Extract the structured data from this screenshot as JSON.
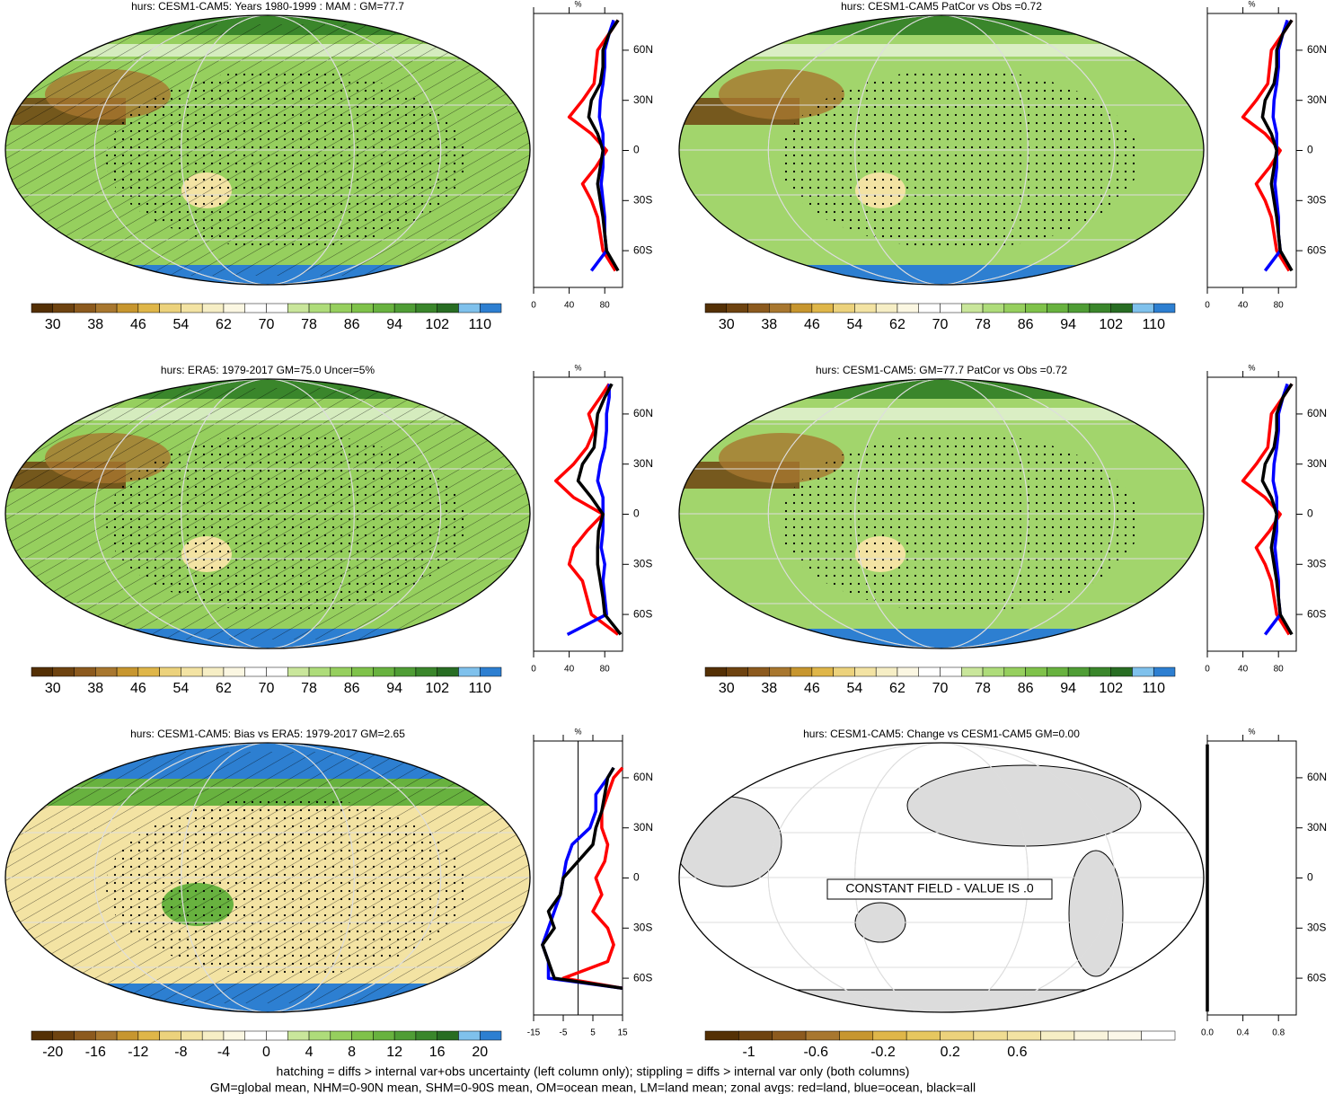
{
  "chart_data": [
    {
      "type": "zonal",
      "title": "hurs: CESM1-CAM5: Years 1980-1999 : MAM : GM=77.7",
      "map_color": "#96cf5e",
      "colorbar": {
        "colors": [
          "#543005",
          "#6e4310",
          "#8c5a1e",
          "#a8772f",
          "#c7962f",
          "#dfb649",
          "#ecd27c",
          "#f3e3a3",
          "#f6eec5",
          "#fbf7e2",
          "#ffffff",
          "#ffffff",
          "#c9e69b",
          "#aedc7a",
          "#96cf5e",
          "#7fc24a",
          "#68b23f",
          "#4f9d35",
          "#3a862b",
          "#286d23",
          "#7fc1ec",
          "#2d7fd1"
        ],
        "ticks": [
          30,
          38,
          46,
          54,
          62,
          70,
          78,
          86,
          94,
          102,
          110
        ]
      },
      "xlabel": "%",
      "xlim": [
        0,
        100
      ],
      "xticks": [
        0,
        40,
        80
      ],
      "ylim": [
        -82,
        82
      ],
      "yticks": [
        {
          "value": -60,
          "label": "60S"
        },
        {
          "value": -30,
          "label": "30S"
        },
        0,
        {
          "value": 30,
          "label": "30N"
        },
        {
          "value": 60,
          "label": "60N"
        }
      ],
      "lat": [
        -72,
        -60,
        -50,
        -40,
        -30,
        -20,
        -10,
        0,
        10,
        20,
        30,
        40,
        50,
        60,
        70,
        78
      ],
      "series": [
        {
          "color": "#ff0000",
          "values": [
            92,
            78,
            75,
            72,
            65,
            55,
            70,
            82,
            65,
            40,
            55,
            68,
            70,
            72,
            85,
            95
          ]
        },
        {
          "color": "#0000ff",
          "values": [
            65,
            82,
            80,
            80,
            78,
            76,
            78,
            78,
            78,
            74,
            75,
            78,
            80,
            80,
            85,
            90
          ]
        },
        {
          "color": "#000000",
          "values": [
            95,
            82,
            80,
            78,
            75,
            72,
            75,
            78,
            72,
            62,
            65,
            75,
            78,
            78,
            85,
            95
          ]
        }
      ]
    },
    {
      "type": "zonal",
      "title": "hurs: CESM1-CAM5 PatCor vs Obs =0.72",
      "map_color": "#a2d56c",
      "colorbar": {
        "colors": [
          "#543005",
          "#6e4310",
          "#8c5a1e",
          "#a8772f",
          "#c7962f",
          "#dfb649",
          "#ecd27c",
          "#f3e3a3",
          "#f6eec5",
          "#fbf7e2",
          "#ffffff",
          "#ffffff",
          "#c9e69b",
          "#aedc7a",
          "#96cf5e",
          "#7fc24a",
          "#68b23f",
          "#4f9d35",
          "#3a862b",
          "#286d23",
          "#7fc1ec",
          "#2d7fd1"
        ],
        "ticks": [
          30,
          38,
          46,
          54,
          62,
          70,
          78,
          86,
          94,
          102,
          110
        ]
      },
      "xlabel": "%",
      "xlim": [
        0,
        100
      ],
      "xticks": [
        0,
        40,
        80
      ],
      "ylim": [
        -82,
        82
      ],
      "yticks": [
        {
          "value": -60,
          "label": "60S"
        },
        {
          "value": -30,
          "label": "30S"
        },
        0,
        {
          "value": 30,
          "label": "30N"
        },
        {
          "value": 60,
          "label": "60N"
        }
      ],
      "lat": [
        -72,
        -60,
        -50,
        -40,
        -30,
        -20,
        -10,
        0,
        10,
        20,
        30,
        40,
        50,
        60,
        70,
        78
      ],
      "series": [
        {
          "color": "#ff0000",
          "values": [
            92,
            78,
            75,
            72,
            65,
            55,
            70,
            82,
            65,
            40,
            55,
            68,
            70,
            72,
            85,
            95
          ]
        },
        {
          "color": "#0000ff",
          "values": [
            65,
            82,
            80,
            80,
            78,
            76,
            78,
            78,
            78,
            74,
            75,
            78,
            80,
            80,
            85,
            90
          ]
        },
        {
          "color": "#000000",
          "values": [
            95,
            82,
            80,
            78,
            75,
            72,
            75,
            78,
            72,
            62,
            65,
            75,
            78,
            78,
            85,
            95
          ]
        }
      ]
    },
    {
      "type": "zonal",
      "title": "hurs: ERA5: 1979-2017 GM=75.0 Uncer=5%",
      "map_color": "#96cf5e",
      "colorbar": {
        "colors": [
          "#543005",
          "#6e4310",
          "#8c5a1e",
          "#a8772f",
          "#c7962f",
          "#dfb649",
          "#ecd27c",
          "#f3e3a3",
          "#f6eec5",
          "#fbf7e2",
          "#ffffff",
          "#ffffff",
          "#c9e69b",
          "#aedc7a",
          "#96cf5e",
          "#7fc24a",
          "#68b23f",
          "#4f9d35",
          "#3a862b",
          "#286d23",
          "#7fc1ec",
          "#2d7fd1"
        ],
        "ticks": [
          30,
          38,
          46,
          54,
          62,
          70,
          78,
          86,
          94,
          102,
          110
        ]
      },
      "xlabel": "%",
      "xlim": [
        0,
        100
      ],
      "xticks": [
        0,
        40,
        80
      ],
      "ylim": [
        -82,
        82
      ],
      "yticks": [
        {
          "value": -60,
          "label": "60S"
        },
        {
          "value": -30,
          "label": "30S"
        },
        0,
        {
          "value": 30,
          "label": "30N"
        },
        {
          "value": 60,
          "label": "60N"
        }
      ],
      "lat": [
        -72,
        -60,
        -50,
        -40,
        -30,
        -20,
        -10,
        0,
        10,
        20,
        30,
        40,
        50,
        60,
        70,
        78
      ],
      "series": [
        {
          "color": "#ff0000",
          "values": [
            95,
            65,
            60,
            55,
            40,
            45,
            60,
            78,
            45,
            25,
            45,
            60,
            68,
            62,
            75,
            85
          ]
        },
        {
          "color": "#0000ff",
          "values": [
            38,
            82,
            80,
            78,
            80,
            76,
            78,
            78,
            78,
            72,
            75,
            80,
            82,
            82,
            85,
            85
          ]
        },
        {
          "color": "#000000",
          "values": [
            98,
            80,
            78,
            75,
            72,
            72,
            73,
            78,
            65,
            50,
            55,
            68,
            70,
            72,
            80,
            88
          ]
        }
      ]
    },
    {
      "type": "zonal",
      "title": "hurs: CESM1-CAM5: GM=77.7 PatCor vs Obs =0.72",
      "map_color": "#a2d56c",
      "colorbar": {
        "colors": [
          "#543005",
          "#6e4310",
          "#8c5a1e",
          "#a8772f",
          "#c7962f",
          "#dfb649",
          "#ecd27c",
          "#f3e3a3",
          "#f6eec5",
          "#fbf7e2",
          "#ffffff",
          "#ffffff",
          "#c9e69b",
          "#aedc7a",
          "#96cf5e",
          "#7fc24a",
          "#68b23f",
          "#4f9d35",
          "#3a862b",
          "#286d23",
          "#7fc1ec",
          "#2d7fd1"
        ],
        "ticks": [
          30,
          38,
          46,
          54,
          62,
          70,
          78,
          86,
          94,
          102,
          110
        ]
      },
      "xlabel": "%",
      "xlim": [
        0,
        100
      ],
      "xticks": [
        0,
        40,
        80
      ],
      "ylim": [
        -82,
        82
      ],
      "yticks": [
        {
          "value": -60,
          "label": "60S"
        },
        {
          "value": -30,
          "label": "30S"
        },
        0,
        {
          "value": 30,
          "label": "30N"
        },
        {
          "value": 60,
          "label": "60N"
        }
      ],
      "lat": [
        -72,
        -60,
        -50,
        -40,
        -30,
        -20,
        -10,
        0,
        10,
        20,
        30,
        40,
        50,
        60,
        70,
        78
      ],
      "series": [
        {
          "color": "#ff0000",
          "values": [
            92,
            78,
            75,
            72,
            65,
            55,
            70,
            82,
            65,
            40,
            55,
            68,
            70,
            72,
            85,
            95
          ]
        },
        {
          "color": "#0000ff",
          "values": [
            65,
            82,
            80,
            80,
            78,
            76,
            78,
            78,
            78,
            74,
            75,
            78,
            80,
            80,
            85,
            90
          ]
        },
        {
          "color": "#000000",
          "values": [
            95,
            82,
            80,
            78,
            75,
            72,
            75,
            78,
            72,
            62,
            65,
            75,
            78,
            78,
            85,
            95
          ]
        }
      ]
    },
    {
      "type": "zonal",
      "title": "hurs: CESM1-CAM5: Bias vs ERA5: 1979-2017 GM=2.65",
      "map_color": "#f3e3a3",
      "colorbar": {
        "colors": [
          "#543005",
          "#6e4310",
          "#8c5a1e",
          "#a8772f",
          "#c7962f",
          "#dfb649",
          "#ecd27c",
          "#f3e3a3",
          "#f6eec5",
          "#fbf7e2",
          "#ffffff",
          "#ffffff",
          "#c9e69b",
          "#aedc7a",
          "#96cf5e",
          "#7fc24a",
          "#68b23f",
          "#4f9d35",
          "#3a862b",
          "#286d23",
          "#7fc1ec",
          "#2d7fd1"
        ],
        "ticks": [
          -20,
          -16,
          -12,
          -8,
          -4,
          0,
          4,
          8,
          12,
          16,
          20
        ]
      },
      "xlabel": "%",
      "xlim": [
        -15,
        15
      ],
      "xticks": [
        -15,
        -5,
        5,
        15
      ],
      "ylim": [
        -82,
        82
      ],
      "yticks": [
        {
          "value": -60,
          "label": "60S"
        },
        {
          "value": -30,
          "label": "30S"
        },
        0,
        {
          "value": 30,
          "label": "30N"
        },
        {
          "value": 60,
          "label": "60N"
        }
      ],
      "lat": [
        -66,
        -60,
        -50,
        -40,
        -30,
        -20,
        -10,
        0,
        10,
        20,
        30,
        40,
        50,
        60,
        66
      ],
      "series": [
        {
          "color": "#ff0000",
          "values": [
            15,
            -5,
            10,
            12,
            10,
            5,
            8,
            6,
            9,
            10,
            8,
            8,
            10,
            12,
            15
          ]
        },
        {
          "color": "#0000ff",
          "values": [
            15,
            -10,
            -10,
            -12,
            -10,
            -8,
            -6,
            -5,
            -4,
            -2,
            4,
            6,
            6,
            10,
            12
          ]
        },
        {
          "color": "#000000",
          "values": [
            15,
            -8,
            -10,
            -12,
            -8,
            -10,
            -6,
            -5,
            0,
            5,
            6,
            8,
            9,
            10,
            12
          ]
        }
      ]
    },
    {
      "type": "zonal",
      "title": "hurs: CESM1-CAM5: Change vs CESM1-CAM5 GM=0.00",
      "map_color": "#ffffff",
      "note": "CONSTANT FIELD - VALUE IS .0",
      "colorbar": {
        "colors": [
          "#543005",
          "#6e4310",
          "#8c5a1e",
          "#a8772f",
          "#c7962f",
          "#dfb649",
          "#e6c75f",
          "#ecd27c",
          "#f0dc92",
          "#f3e3a3",
          "#f6eec5",
          "#f9f4dc",
          "#fbf7e9",
          "#ffffff"
        ],
        "ticks": [
          -1,
          -0.6,
          -0.2,
          0.2,
          0.6
        ]
      },
      "xlabel": "%",
      "xlim": [
        0,
        1
      ],
      "xticks": [
        {
          "value": 0,
          "label": "0.0"
        },
        0.4,
        0.8
      ],
      "ylim": [
        -82,
        82
      ],
      "yticks": [
        {
          "value": -60,
          "label": "60S"
        },
        {
          "value": -30,
          "label": "30S"
        },
        0,
        {
          "value": 30,
          "label": "30N"
        },
        {
          "value": 60,
          "label": "60N"
        }
      ],
      "lat": [
        -80,
        -60,
        -30,
        0,
        30,
        60,
        80
      ],
      "series": [
        {
          "color": "#000000",
          "values": [
            0,
            0,
            0,
            0,
            0,
            0,
            0
          ]
        }
      ]
    }
  ],
  "footer": [
    "hatching = diffs > internal var+obs uncertainty (left column only); stippling = diffs > internal var only (both columns)",
    "GM=global mean, NHM=0-90N mean, SHM=0-90S mean, OM=ocean mean, LM=land mean; zonal avgs: red=land, blue=ocean, black=all"
  ]
}
